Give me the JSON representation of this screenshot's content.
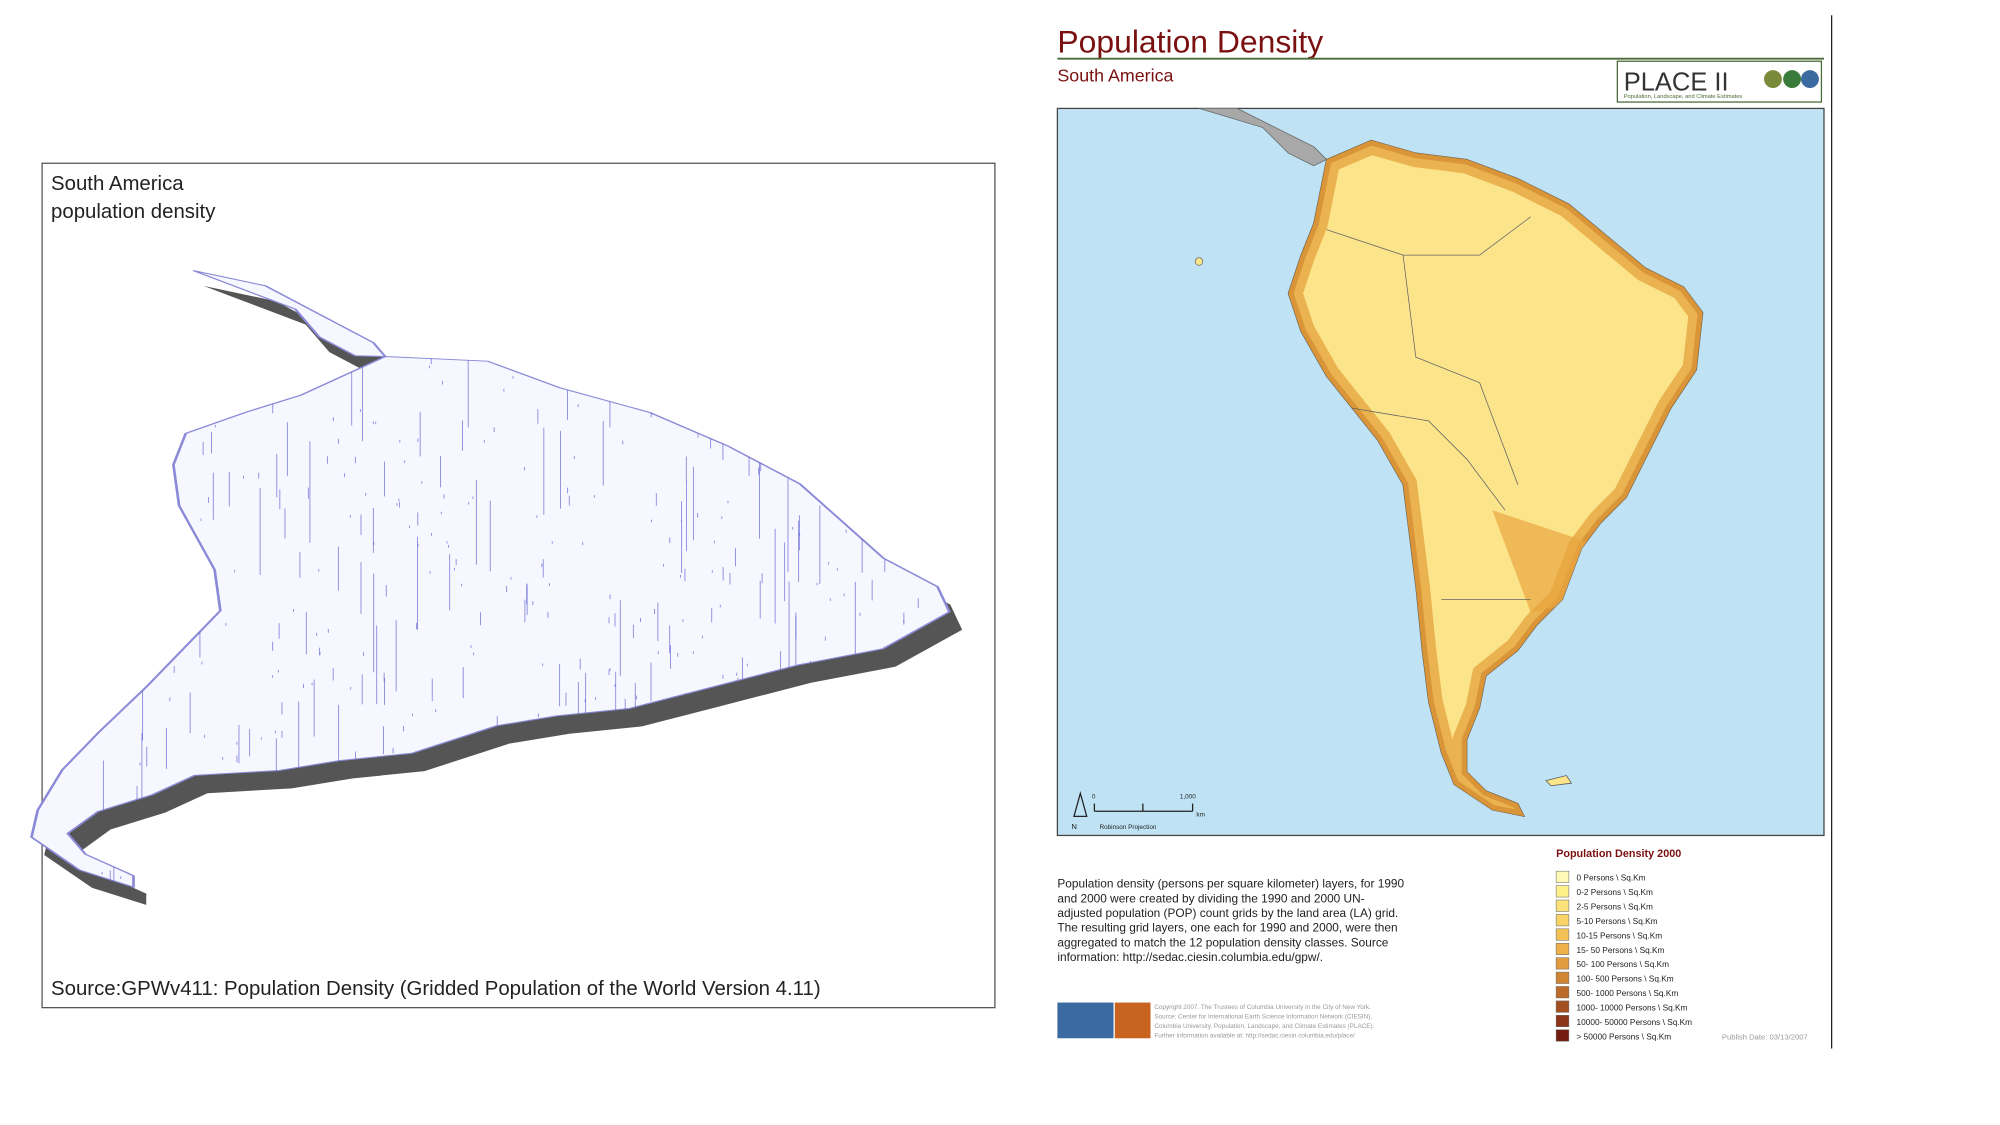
{
  "left_map": {
    "title_lines": [
      "South America",
      "population density"
    ],
    "source": "Source:GPWv411: Population Density (Gridded Population of the World Version 4.11)"
  },
  "right_map": {
    "title": "Population Density",
    "subtitle": "South America",
    "logo": {
      "name": "PLACE II",
      "tagline": "Population, Landscape, and Climate Estimates"
    },
    "scale_bar": {
      "start": "0",
      "end": "1,000",
      "unit": "km",
      "north": "N",
      "projection": "Robinson Projection"
    },
    "description_lines": [
      "Population density (persons per square kilometer) layers, for 1990",
      "and 2000 were created by dividing the 1990 and 2000 UN-",
      "adjusted population (POP) count grids by the land area (LA) grid.",
      "The resulting grid layers, one each for 1990 and 2000, were then",
      "aggregated to match the 12 population density classes. Source",
      "information: http://sedac.ciesin.columbia.edu/gpw/."
    ],
    "copyright_lines": [
      "Copyright 2007. The Trustees of Columbia University in the City of New York.",
      "Source: Center for International Earth Science Information Network (CIESIN),",
      "Columbia University. Population, Landscape, and Climate Estimates (PLACE).",
      "Further information available at: http://sedac.ciesin.columbia.edu/place/"
    ],
    "publish_date": "Publish Date: 03/13/2007",
    "legend": {
      "title": "Population Density 2000",
      "items": [
        {
          "label": "0 Persons \\ Sq.Km",
          "color": "#fff9b8"
        },
        {
          "label": "0-2 Persons \\ Sq.Km",
          "color": "#fef08a"
        },
        {
          "label": "2-5 Persons \\ Sq.Km",
          "color": "#fbe27a"
        },
        {
          "label": "5-10 Persons \\ Sq.Km",
          "color": "#f8d368"
        },
        {
          "label": "10-15 Persons \\ Sq.Km",
          "color": "#f3c257"
        },
        {
          "label": "15- 50 Persons \\ Sq.Km",
          "color": "#edb04a"
        },
        {
          "label": "50- 100 Persons \\ Sq.Km",
          "color": "#e29b3e"
        },
        {
          "label": "100- 500 Persons \\ Sq.Km",
          "color": "#d18534"
        },
        {
          "label": "500- 1000 Persons \\ Sq.Km",
          "color": "#bd6b2a"
        },
        {
          "label": "1000- 10000 Persons \\ Sq.Km",
          "color": "#a44f20"
        },
        {
          "label": "10000- 50000 Persons \\ Sq.Km",
          "color": "#8c3418"
        },
        {
          "label": "> 50000 Persons \\ Sq.Km",
          "color": "#741c10"
        }
      ]
    }
  }
}
